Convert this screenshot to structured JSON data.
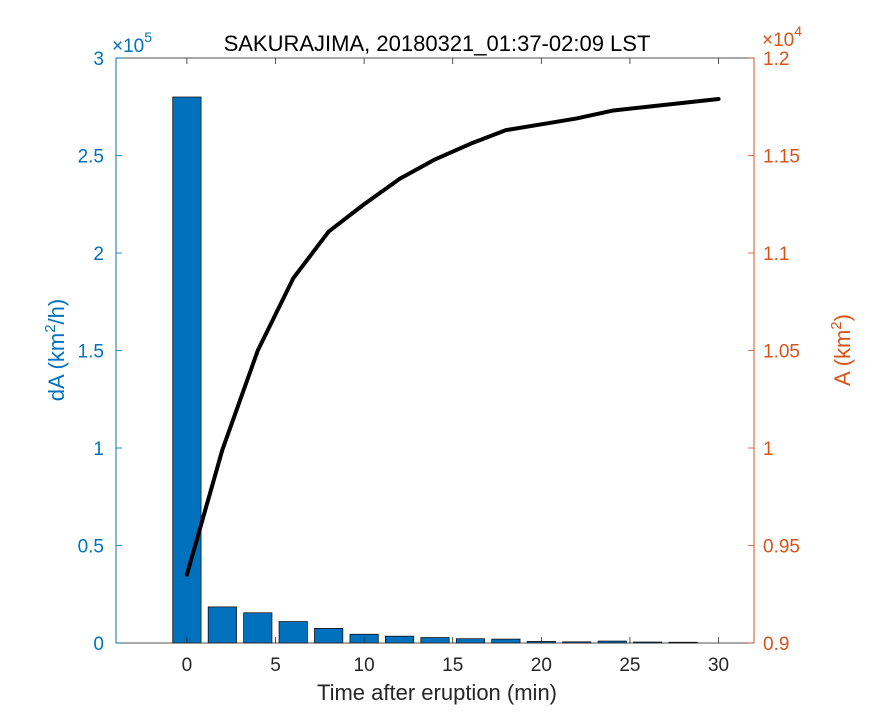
{
  "chart_data": {
    "type": "bar",
    "title": "SAKURAJIMA, 20180321_01:37-02:09 LST",
    "xlabel": "Time after eruption (min)",
    "xlim": [
      -4,
      32
    ],
    "xticks": [
      0,
      5,
      10,
      15,
      20,
      25,
      30
    ],
    "xtick_labels": [
      "0",
      "5",
      "10",
      "15",
      "20",
      "25",
      "30"
    ],
    "left_axis": {
      "label_main": "dA (km",
      "label_sup": "2",
      "label_end": "/h)",
      "exponent_base": "×10",
      "exponent_power": "5",
      "scale": 100000,
      "ylim": [
        0,
        3
      ],
      "ticks": [
        0,
        0.5,
        1,
        1.5,
        2,
        2.5,
        3
      ],
      "tick_labels": [
        "0",
        "0.5",
        "1",
        "1.5",
        "2",
        "2.5",
        "3"
      ],
      "color": "#0072BD"
    },
    "right_axis": {
      "label_main": "A (km",
      "label_sup": "2",
      "label_end": ")",
      "exponent_base": "×10",
      "exponent_power": "4",
      "scale": 10000,
      "ylim": [
        0.9,
        1.2
      ],
      "ticks": [
        0.9,
        0.95,
        1.0,
        1.05,
        1.1,
        1.15,
        1.2
      ],
      "tick_labels": [
        "0.9",
        "0.95",
        "1",
        "1.05",
        "1.1",
        "1.15",
        "1.2"
      ],
      "color": "#D95319"
    },
    "bars": {
      "color": "#0072BD",
      "edge": "#000000",
      "x": [
        0,
        2,
        4,
        6,
        8,
        10,
        12,
        14,
        16,
        18,
        20,
        22,
        24,
        26,
        28
      ],
      "values": [
        2.8,
        0.185,
        0.155,
        0.11,
        0.075,
        0.045,
        0.035,
        0.028,
        0.022,
        0.02,
        0.008,
        0.006,
        0.01,
        0.005,
        0.004
      ]
    },
    "line": {
      "color": "#000000",
      "x": [
        0,
        2,
        4,
        6,
        8,
        10,
        12,
        14,
        16,
        18,
        20,
        22,
        24,
        26,
        28,
        30
      ],
      "values": [
        0.935,
        0.999,
        1.05,
        1.087,
        1.111,
        1.125,
        1.138,
        1.148,
        1.156,
        1.163,
        1.166,
        1.169,
        1.173,
        1.175,
        1.177,
        1.179
      ]
    }
  }
}
